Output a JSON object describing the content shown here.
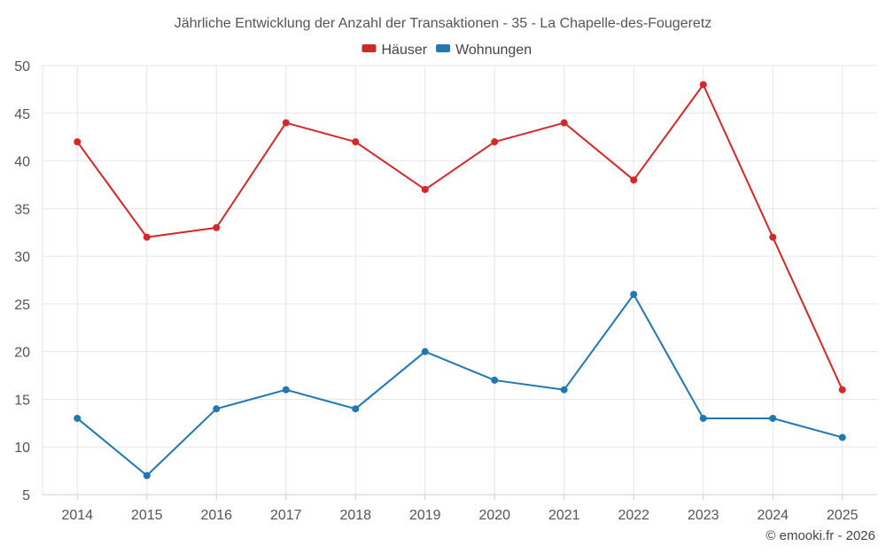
{
  "chart_data": {
    "type": "line",
    "title": "Jährliche Entwicklung der Anzahl der Transaktionen - 35 - La Chapelle-des-Fougeretz",
    "categories": [
      "2014",
      "2015",
      "2016",
      "2017",
      "2018",
      "2019",
      "2020",
      "2021",
      "2022",
      "2023",
      "2024",
      "2025"
    ],
    "series": [
      {
        "name": "Häuser",
        "color": "#d62728",
        "values": [
          42,
          32,
          33,
          44,
          42,
          37,
          42,
          44,
          38,
          48,
          32,
          16
        ]
      },
      {
        "name": "Wohnungen",
        "color": "#1f77b4",
        "values": [
          13,
          7,
          14,
          16,
          14,
          20,
          17,
          16,
          26,
          13,
          13,
          11
        ]
      }
    ],
    "ylim": [
      5,
      50
    ],
    "yticks": [
      5,
      10,
      15,
      20,
      25,
      30,
      35,
      40,
      45,
      50
    ],
    "xlabel": "",
    "ylabel": "",
    "grid": true,
    "legend_position": "top-center"
  },
  "credit": "© emooki.fr - 2026"
}
